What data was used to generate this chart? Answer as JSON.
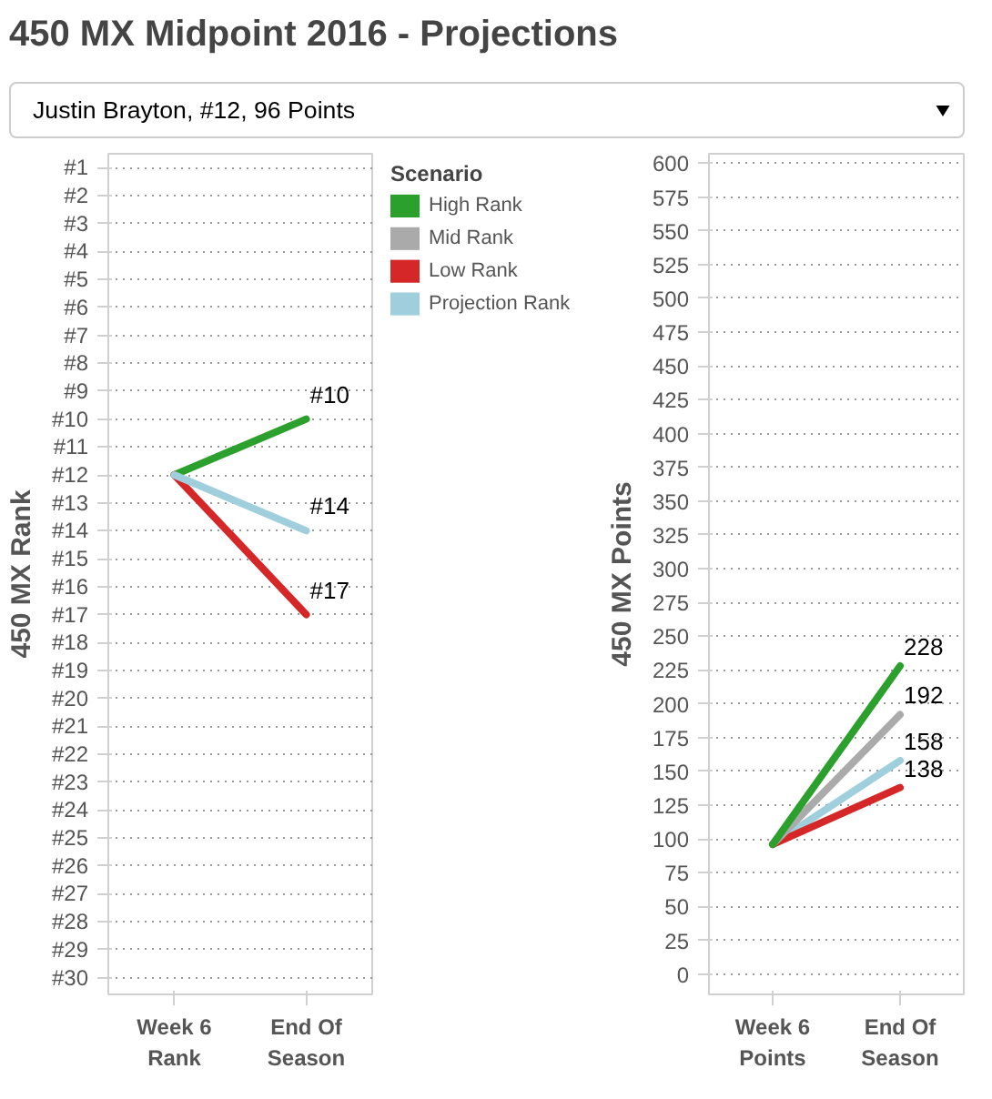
{
  "chart_data": [
    {
      "type": "line",
      "title": "450 MX Midpoint 2016 - Projections",
      "annotations": [
        "Justin Brayton, #12, 96 Points"
      ],
      "ylabel": "450 MX Rank",
      "legend_title": "Scenario",
      "legend": "right",
      "grid": "y",
      "categories": [
        "Week 6\nRank",
        "End Of\nSeason"
      ],
      "ylim": [
        30.6,
        0.5
      ],
      "yticks": [
        {
          "value": 1,
          "label": "#1"
        },
        {
          "value": 2,
          "label": "#2"
        },
        {
          "value": 3,
          "label": "#3"
        },
        {
          "value": 4,
          "label": "#4"
        },
        {
          "value": 5,
          "label": "#5"
        },
        {
          "value": 6,
          "label": "#6"
        },
        {
          "value": 7,
          "label": "#7"
        },
        {
          "value": 8,
          "label": "#8"
        },
        {
          "value": 9,
          "label": "#9"
        },
        {
          "value": 10,
          "label": "#10"
        },
        {
          "value": 11,
          "label": "#11"
        },
        {
          "value": 12,
          "label": "#12"
        },
        {
          "value": 13,
          "label": "#13"
        },
        {
          "value": 14,
          "label": "#14"
        },
        {
          "value": 15,
          "label": "#15"
        },
        {
          "value": 16,
          "label": "#16"
        },
        {
          "value": 17,
          "label": "#17"
        },
        {
          "value": 18,
          "label": "#18"
        },
        {
          "value": 19,
          "label": "#19"
        },
        {
          "value": 20,
          "label": "#20"
        },
        {
          "value": 21,
          "label": "#21"
        },
        {
          "value": 22,
          "label": "#22"
        },
        {
          "value": 23,
          "label": "#23"
        },
        {
          "value": 24,
          "label": "#24"
        },
        {
          "value": 25,
          "label": "#25"
        },
        {
          "value": 26,
          "label": "#26"
        },
        {
          "value": 27,
          "label": "#27"
        },
        {
          "value": 28,
          "label": "#28"
        },
        {
          "value": 29,
          "label": "#29"
        },
        {
          "value": 30,
          "label": "#30"
        }
      ],
      "series": [
        {
          "name": "High Rank",
          "color": "#2ca02c",
          "values": [
            12,
            10
          ],
          "value_labels": [
            null,
            "#10"
          ]
        },
        {
          "name": "Mid Rank",
          "color": "#aaaaaa",
          "values": [
            null,
            null
          ]
        },
        {
          "name": "Low Rank",
          "color": "#d62728",
          "values": [
            12,
            17
          ],
          "value_labels": [
            null,
            "#17"
          ]
        },
        {
          "name": "Projection Rank",
          "color": "#9fcfdc",
          "values": [
            12,
            14
          ],
          "value_labels": [
            null,
            "#14"
          ]
        }
      ]
    },
    {
      "type": "line",
      "ylabel": "450 MX Points",
      "grid": "y",
      "categories": [
        "Week 6\nPoints",
        "End Of\nSeason"
      ],
      "ylim": [
        -15,
        607
      ],
      "yticks": [
        0,
        25,
        50,
        75,
        100,
        125,
        150,
        175,
        200,
        225,
        250,
        275,
        300,
        325,
        350,
        375,
        400,
        425,
        450,
        475,
        500,
        525,
        550,
        575,
        600
      ],
      "series": [
        {
          "color": "#9fcfdc",
          "values": [
            96,
            158
          ],
          "value_labels": [
            null,
            "158"
          ]
        },
        {
          "color": "#d62728",
          "values": [
            96,
            138
          ],
          "value_labels": [
            null,
            "138"
          ]
        },
        {
          "color": "#aaaaaa",
          "values": [
            96,
            192
          ],
          "value_labels": [
            null,
            "192"
          ]
        },
        {
          "color": "#2ca02c",
          "values": [
            96,
            228
          ],
          "value_labels": [
            null,
            "228"
          ]
        }
      ]
    }
  ]
}
